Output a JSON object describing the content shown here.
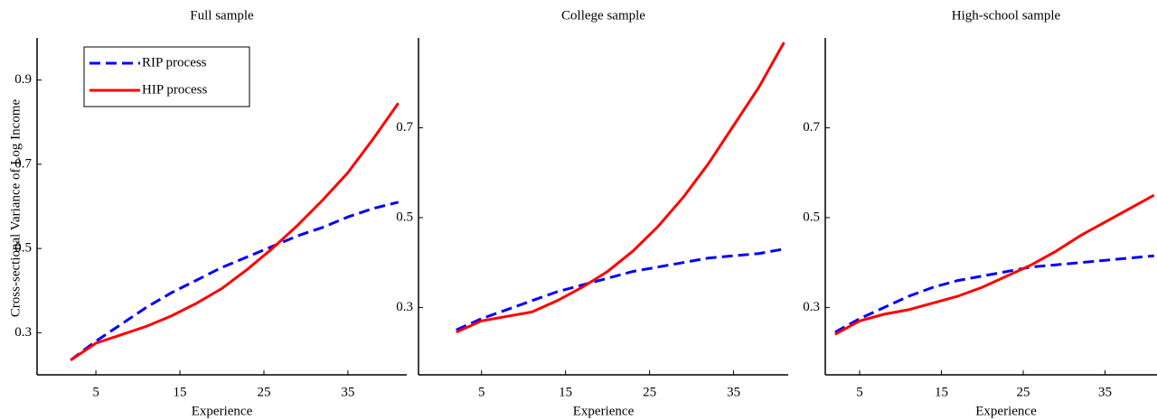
{
  "chart_data": [
    {
      "type": "line",
      "title": "Full sample",
      "x_label": "Experience",
      "y_label": "Cross-sectional Variance of Log Income",
      "x": [
        2,
        5,
        8,
        11,
        14,
        17,
        20,
        23,
        26,
        29,
        32,
        35,
        38,
        41
      ],
      "series": [
        {
          "name": "RIP process",
          "color": "#0000ff",
          "line_style": "dashed",
          "values": [
            0.235,
            0.28,
            0.32,
            0.36,
            0.395,
            0.425,
            0.455,
            0.48,
            0.505,
            0.53,
            0.55,
            0.575,
            0.595,
            0.61
          ]
        },
        {
          "name": "HIP process",
          "color": "#ff0000",
          "line_style": "solid",
          "values": [
            0.235,
            0.275,
            0.295,
            0.315,
            0.34,
            0.37,
            0.405,
            0.45,
            0.5,
            0.555,
            0.615,
            0.68,
            0.76,
            0.845
          ]
        }
      ],
      "xlim": [
        -2,
        42
      ],
      "ylim": [
        0.2,
        1.0
      ],
      "xticks": [
        5,
        15,
        25,
        35
      ],
      "yticks": [
        0.3,
        0.5,
        0.7,
        0.9
      ],
      "legend": "upper left"
    },
    {
      "type": "line",
      "title": "College sample",
      "x_label": "Experience",
      "x": [
        2,
        5,
        8,
        11,
        14,
        17,
        20,
        23,
        26,
        29,
        32,
        35,
        38,
        41
      ],
      "series": [
        {
          "name": "RIP process",
          "color": "#0000ff",
          "line_style": "dashed",
          "values": [
            0.25,
            0.275,
            0.295,
            0.315,
            0.335,
            0.35,
            0.365,
            0.38,
            0.39,
            0.4,
            0.41,
            0.415,
            0.42,
            0.43
          ]
        },
        {
          "name": "HIP process",
          "color": "#ff0000",
          "line_style": "solid",
          "values": [
            0.245,
            0.27,
            0.28,
            0.29,
            0.315,
            0.345,
            0.38,
            0.425,
            0.48,
            0.545,
            0.62,
            0.705,
            0.79,
            0.89
          ]
        }
      ],
      "xlim": [
        -2.5,
        41.5
      ],
      "ylim": [
        0.15,
        0.9
      ],
      "xticks": [
        5,
        15,
        25,
        35
      ],
      "yticks": [
        0.3,
        0.5,
        0.7
      ]
    },
    {
      "type": "line",
      "title": "High-school sample",
      "x_label": "Experience",
      "x": [
        2,
        5,
        8,
        11,
        14,
        17,
        20,
        23,
        26,
        29,
        32,
        35,
        38,
        41
      ],
      "series": [
        {
          "name": "RIP process",
          "color": "#0000ff",
          "line_style": "dashed",
          "values": [
            0.245,
            0.275,
            0.3,
            0.325,
            0.345,
            0.36,
            0.37,
            0.38,
            0.39,
            0.395,
            0.4,
            0.405,
            0.41,
            0.415
          ]
        },
        {
          "name": "HIP process",
          "color": "#ff0000",
          "line_style": "solid",
          "values": [
            0.24,
            0.27,
            0.285,
            0.295,
            0.31,
            0.325,
            0.345,
            0.37,
            0.395,
            0.425,
            0.46,
            0.49,
            0.52,
            0.55
          ]
        }
      ],
      "xlim": [
        0.8,
        45
      ],
      "ylim": [
        0.15,
        0.9
      ],
      "xticks": [
        5,
        15,
        25,
        35
      ],
      "yticks": [
        0.3,
        0.5,
        0.7
      ]
    }
  ]
}
